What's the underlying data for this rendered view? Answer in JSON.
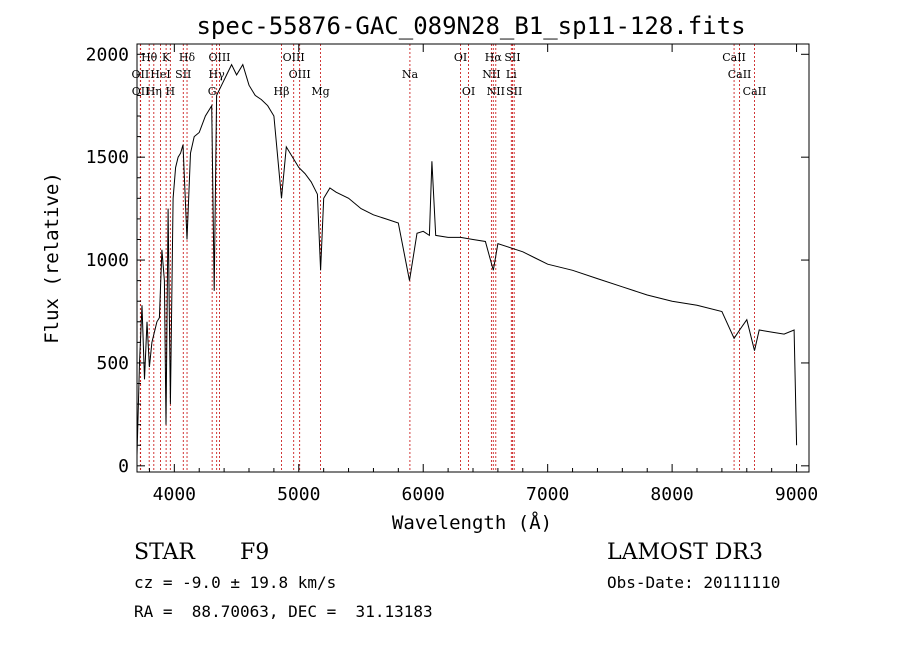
{
  "chart_data": {
    "type": "line",
    "title": "spec-55876-GAC_089N28_B1_sp11-128.fits",
    "xlabel": "Wavelength (Å)",
    "ylabel": "Flux (relative)",
    "xlim": [
      3700,
      9100
    ],
    "ylim": [
      -30,
      2050
    ],
    "xticks": [
      4000,
      5000,
      6000,
      7000,
      8000,
      9000
    ],
    "yticks": [
      0,
      500,
      1000,
      1500,
      2000
    ],
    "series": [
      {
        "name": "spectrum",
        "x": [
          3700,
          3720,
          3740,
          3760,
          3780,
          3800,
          3820,
          3840,
          3860,
          3880,
          3900,
          3920,
          3933,
          3950,
          3968,
          3990,
          4010,
          4030,
          4050,
          4070,
          4102,
          4130,
          4160,
          4200,
          4250,
          4300,
          4320,
          4340,
          4380,
          4420,
          4460,
          4500,
          4550,
          4600,
          4650,
          4700,
          4750,
          4800,
          4861,
          4900,
          4950,
          5000,
          5050,
          5100,
          5150,
          5175,
          5200,
          5250,
          5300,
          5400,
          5500,
          5600,
          5700,
          5800,
          5890,
          5950,
          6000,
          6050,
          6070,
          6100,
          6200,
          6300,
          6400,
          6500,
          6563,
          6600,
          6700,
          6800,
          6900,
          7000,
          7200,
          7400,
          7600,
          7800,
          8000,
          8200,
          8400,
          8498,
          8542,
          8600,
          8662,
          8700,
          8800,
          8900,
          8980,
          9000
        ],
        "y": [
          50,
          500,
          780,
          420,
          700,
          480,
          600,
          650,
          700,
          720,
          1050,
          900,
          200,
          1250,
          300,
          1300,
          1450,
          1500,
          1520,
          1560,
          1100,
          1520,
          1600,
          1620,
          1700,
          1750,
          850,
          1800,
          1850,
          1900,
          1950,
          1900,
          1950,
          1850,
          1800,
          1780,
          1750,
          1700,
          1300,
          1550,
          1500,
          1450,
          1420,
          1380,
          1320,
          950,
          1300,
          1350,
          1330,
          1300,
          1250,
          1220,
          1200,
          1180,
          900,
          1130,
          1140,
          1120,
          1480,
          1120,
          1110,
          1110,
          1100,
          1090,
          950,
          1080,
          1060,
          1040,
          1010,
          980,
          950,
          910,
          870,
          830,
          800,
          780,
          750,
          620,
          660,
          710,
          560,
          660,
          650,
          640,
          660,
          100
        ]
      }
    ],
    "line_groups": [
      {
        "row": 1,
        "labels": [
          "Hθ",
          "K",
          "Hδ",
          "OIII",
          "OIII",
          "OI",
          "Hα",
          "SII",
          "CaII"
        ],
        "x": [
          3798,
          3934,
          4102,
          4363,
          4959,
          6300,
          6563,
          6717,
          8498
        ]
      },
      {
        "row": 2,
        "labels": [
          "OII",
          "HeI",
          "SII",
          "Hγ",
          "OIII",
          "Na",
          "NII",
          "Li",
          "CaII"
        ],
        "x": [
          3727,
          3889,
          4072,
          4340,
          5007,
          5893,
          6548,
          6708,
          8542
        ]
      },
      {
        "row": 3,
        "labels": [
          "OII",
          "Hη",
          "H",
          "G",
          "Hβ",
          "Mg",
          "OI",
          "NII",
          "SII",
          "CaII"
        ],
        "x": [
          3729,
          3835,
          3968,
          4304,
          4861,
          5175,
          6364,
          6583,
          6731,
          8662
        ]
      }
    ],
    "info": {
      "class": "STAR",
      "subclass": "F9",
      "redshift": "cz = -9.0 ± 19.8 km/s",
      "coords": "RA =  88.70063, DEC =  31.13183",
      "survey": "LAMOST DR3",
      "obs_date": "Obs-Date: 20111110"
    }
  },
  "colors": {
    "spectrum": "#000000",
    "line_marker": "#cc2222",
    "axis": "#000000"
  }
}
